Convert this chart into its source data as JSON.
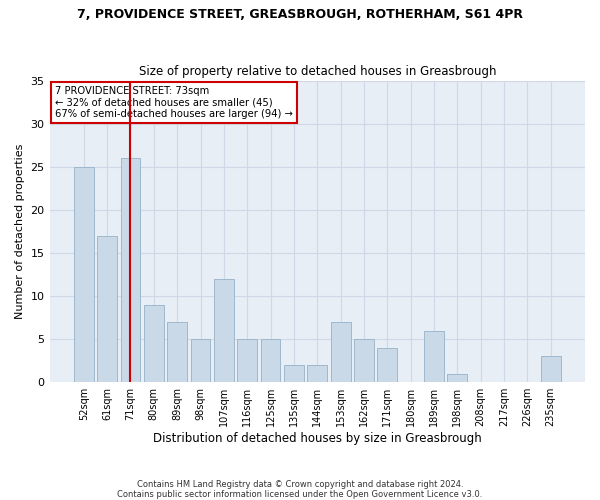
{
  "title_line1": "7, PROVIDENCE STREET, GREASBROUGH, ROTHERHAM, S61 4PR",
  "title_line2": "Size of property relative to detached houses in Greasbrough",
  "xlabel": "Distribution of detached houses by size in Greasbrough",
  "ylabel": "Number of detached properties",
  "categories": [
    "52sqm",
    "61sqm",
    "71sqm",
    "80sqm",
    "89sqm",
    "98sqm",
    "107sqm",
    "116sqm",
    "125sqm",
    "135sqm",
    "144sqm",
    "153sqm",
    "162sqm",
    "171sqm",
    "180sqm",
    "189sqm",
    "198sqm",
    "208sqm",
    "217sqm",
    "226sqm",
    "235sqm"
  ],
  "values": [
    25,
    17,
    26,
    9,
    7,
    5,
    12,
    5,
    5,
    2,
    2,
    7,
    5,
    4,
    0,
    6,
    1,
    0,
    0,
    0,
    3
  ],
  "bar_color": "#c9d9e8",
  "bar_edgecolor": "#a0b8cc",
  "vline_x": 2,
  "vline_color": "#cc0000",
  "annotation_text": "7 PROVIDENCE STREET: 73sqm\n← 32% of detached houses are smaller (45)\n67% of semi-detached houses are larger (94) →",
  "annotation_box_edgecolor": "#cc0000",
  "background_color": "#ffffff",
  "grid_color": "#d0d8e8",
  "ylim": [
    0,
    35
  ],
  "yticks": [
    0,
    5,
    10,
    15,
    20,
    25,
    30,
    35
  ],
  "footer": "Contains HM Land Registry data © Crown copyright and database right 2024.\nContains public sector information licensed under the Open Government Licence v3.0."
}
